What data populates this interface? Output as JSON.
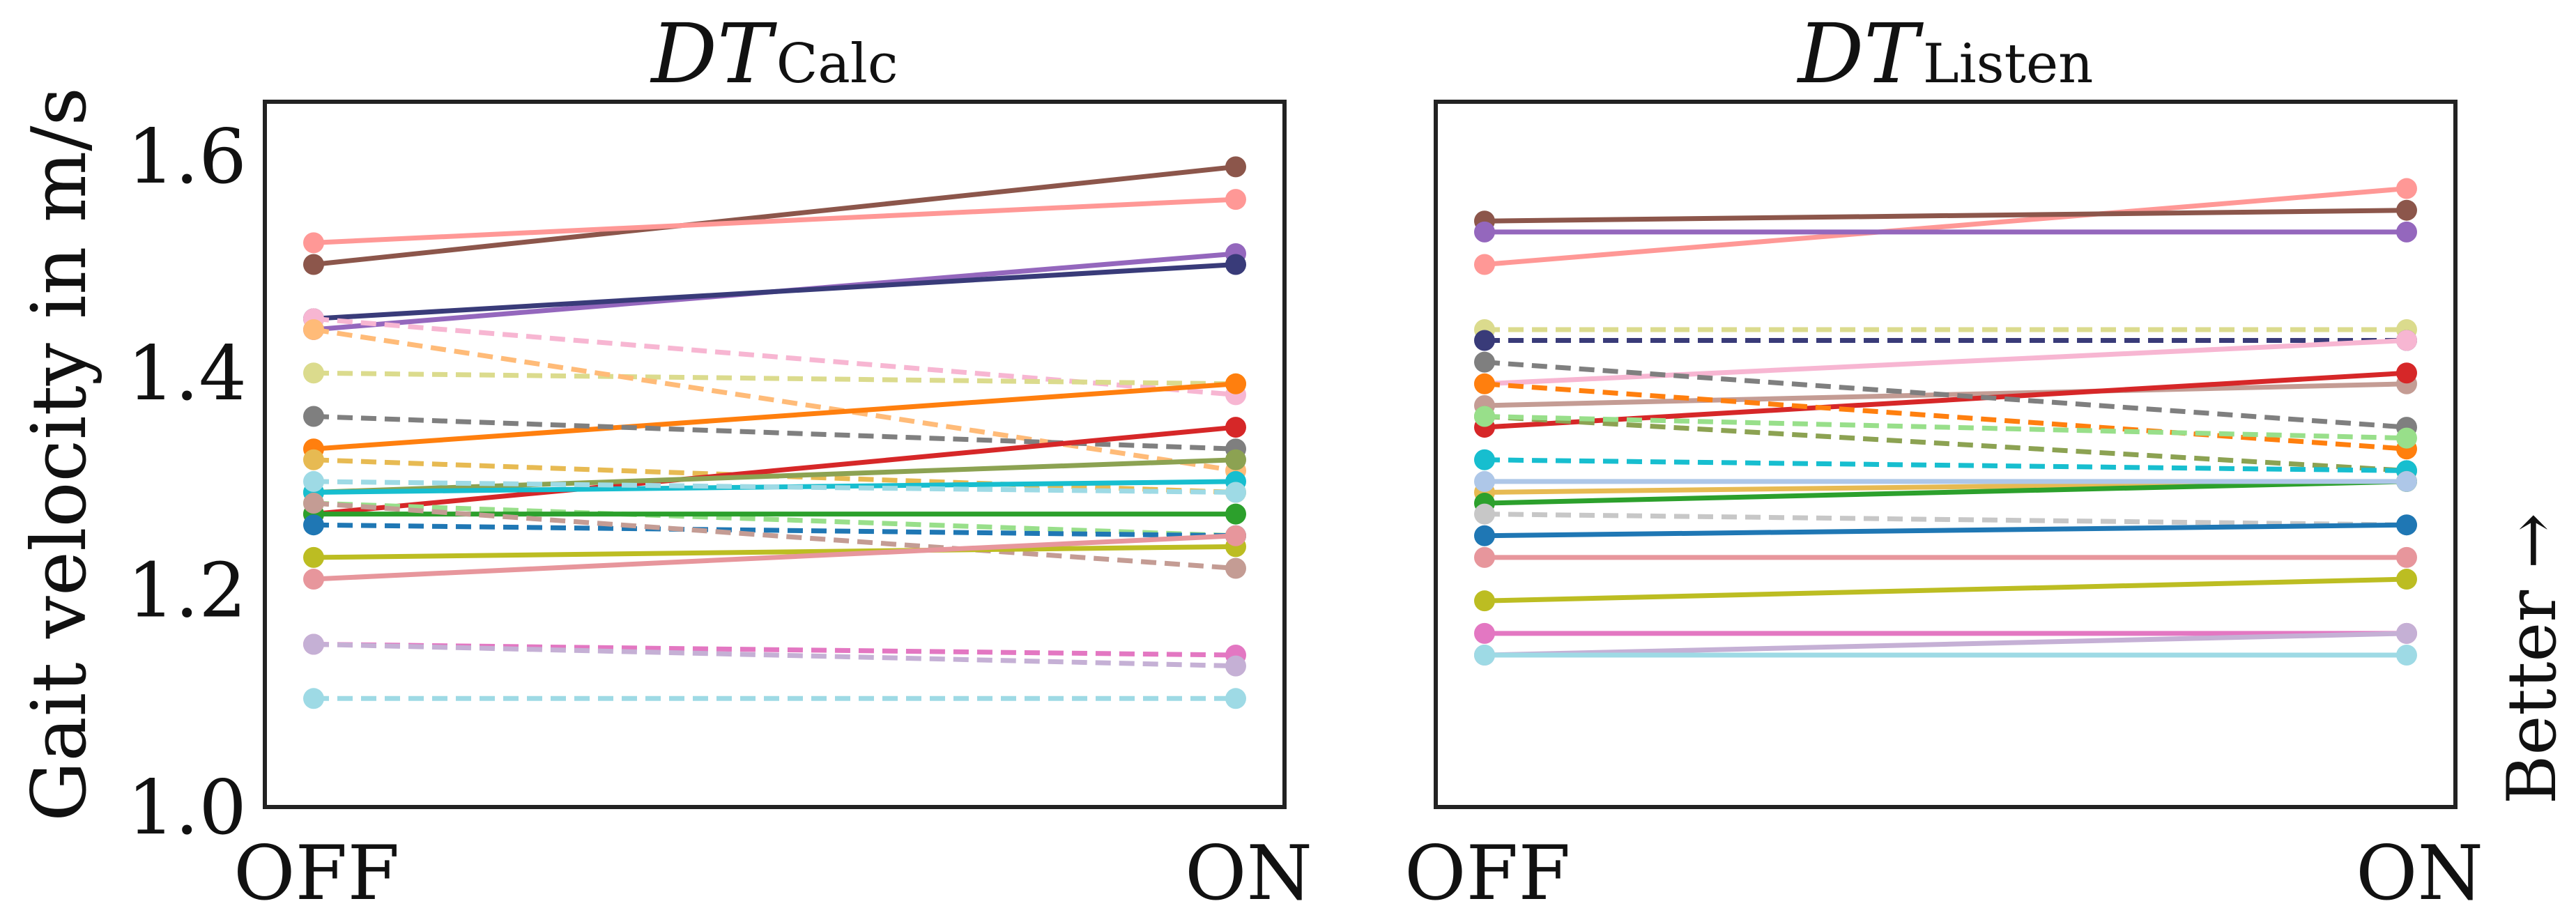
{
  "chart_data": [
    {
      "type": "line",
      "title_main": "DT",
      "title_sub": "Calc",
      "categories": [
        "OFF",
        "ON"
      ],
      "ylabel": "Gait velocity in m/s",
      "ylim": [
        1.0,
        1.65
      ],
      "yticks": [
        "1.0",
        "1.2",
        "1.4",
        "1.6"
      ],
      "grid": false,
      "legend": "none",
      "series": [
        {
          "color": "#8c564b",
          "dash": false,
          "values": [
            1.5,
            1.59
          ]
        },
        {
          "color": "#ff9896",
          "dash": false,
          "values": [
            1.52,
            1.56
          ]
        },
        {
          "color": "#9467bd",
          "dash": false,
          "values": [
            1.44,
            1.51
          ]
        },
        {
          "color": "#393b79",
          "dash": false,
          "values": [
            1.45,
            1.5
          ]
        },
        {
          "color": "#f7b6d2",
          "dash": true,
          "values": [
            1.45,
            1.38
          ]
        },
        {
          "color": "#dbdb8d",
          "dash": true,
          "values": [
            1.4,
            1.39
          ]
        },
        {
          "color": "#ffbb78",
          "dash": true,
          "values": [
            1.44,
            1.31
          ]
        },
        {
          "color": "#ff7f0e",
          "dash": false,
          "values": [
            1.33,
            1.39
          ]
        },
        {
          "color": "#7f7f7f",
          "dash": true,
          "values": [
            1.36,
            1.33
          ]
        },
        {
          "color": "#e7ba52",
          "dash": true,
          "values": [
            1.32,
            1.29
          ]
        },
        {
          "color": "#d62728",
          "dash": false,
          "values": [
            1.27,
            1.35
          ]
        },
        {
          "color": "#8ca252",
          "dash": false,
          "values": [
            1.29,
            1.32
          ]
        },
        {
          "color": "#17becf",
          "dash": false,
          "values": [
            1.29,
            1.3
          ]
        },
        {
          "color": "#9edae5",
          "dash": true,
          "values": [
            1.3,
            1.29
          ]
        },
        {
          "color": "#98df8a",
          "dash": true,
          "values": [
            1.28,
            1.25
          ]
        },
        {
          "color": "#2ca02c",
          "dash": false,
          "values": [
            1.27,
            1.27
          ]
        },
        {
          "color": "#1f77b4",
          "dash": true,
          "values": [
            1.26,
            1.25
          ]
        },
        {
          "color": "#c49c94",
          "dash": true,
          "values": [
            1.28,
            1.22
          ]
        },
        {
          "color": "#bcbd22",
          "dash": false,
          "values": [
            1.23,
            1.24
          ]
        },
        {
          "color": "#e7969c",
          "dash": false,
          "values": [
            1.21,
            1.25
          ]
        },
        {
          "color": "#e377c2",
          "dash": true,
          "values": [
            1.15,
            1.14
          ]
        },
        {
          "color": "#c5b0d5",
          "dash": true,
          "values": [
            1.15,
            1.13
          ]
        },
        {
          "color": "#9edae5",
          "dash": true,
          "values": [
            1.1,
            1.1
          ]
        }
      ]
    },
    {
      "type": "line",
      "title_main": "DT",
      "title_sub": "Listen",
      "categories": [
        "OFF",
        "ON"
      ],
      "ylim": [
        1.0,
        1.65
      ],
      "grid": false,
      "legend": "none",
      "series": [
        {
          "color": "#ff9896",
          "dash": false,
          "values": [
            1.5,
            1.57
          ]
        },
        {
          "color": "#8c564b",
          "dash": false,
          "values": [
            1.54,
            1.55
          ]
        },
        {
          "color": "#9467bd",
          "dash": false,
          "values": [
            1.53,
            1.53
          ]
        },
        {
          "color": "#dbdb8d",
          "dash": true,
          "values": [
            1.44,
            1.44
          ]
        },
        {
          "color": "#393b79",
          "dash": true,
          "values": [
            1.43,
            1.43
          ]
        },
        {
          "color": "#f7b6d2",
          "dash": false,
          "values": [
            1.39,
            1.43
          ]
        },
        {
          "color": "#c49c94",
          "dash": false,
          "values": [
            1.37,
            1.39
          ]
        },
        {
          "color": "#d62728",
          "dash": false,
          "values": [
            1.35,
            1.4
          ]
        },
        {
          "color": "#7f7f7f",
          "dash": true,
          "values": [
            1.41,
            1.35
          ]
        },
        {
          "color": "#ff7f0e",
          "dash": true,
          "values": [
            1.39,
            1.33
          ]
        },
        {
          "color": "#8ca252",
          "dash": true,
          "values": [
            1.36,
            1.31
          ]
        },
        {
          "color": "#98df8a",
          "dash": true,
          "values": [
            1.36,
            1.34
          ]
        },
        {
          "color": "#17becf",
          "dash": true,
          "values": [
            1.32,
            1.31
          ]
        },
        {
          "color": "#e7ba52",
          "dash": false,
          "values": [
            1.29,
            1.3
          ]
        },
        {
          "color": "#2ca02c",
          "dash": false,
          "values": [
            1.28,
            1.3
          ]
        },
        {
          "color": "#aec7e8",
          "dash": false,
          "values": [
            1.3,
            1.3
          ]
        },
        {
          "color": "#c7c7c7",
          "dash": true,
          "values": [
            1.27,
            1.26
          ]
        },
        {
          "color": "#1f77b4",
          "dash": false,
          "values": [
            1.25,
            1.26
          ]
        },
        {
          "color": "#e7969c",
          "dash": false,
          "values": [
            1.23,
            1.23
          ]
        },
        {
          "color": "#bcbd22",
          "dash": false,
          "values": [
            1.19,
            1.21
          ]
        },
        {
          "color": "#e377c2",
          "dash": false,
          "values": [
            1.16,
            1.16
          ]
        },
        {
          "color": "#c5b0d5",
          "dash": false,
          "values": [
            1.14,
            1.16
          ]
        },
        {
          "color": "#9edae5",
          "dash": false,
          "values": [
            1.14,
            1.14
          ]
        }
      ]
    }
  ],
  "annotation": "Better →"
}
